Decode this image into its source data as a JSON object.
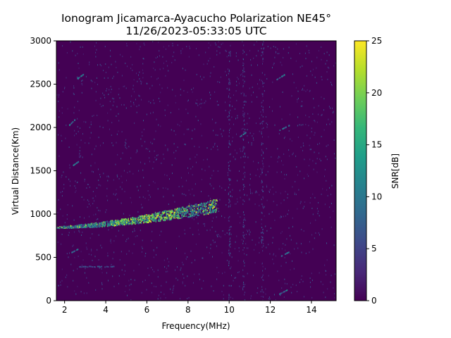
{
  "chart_data": {
    "type": "heatmap",
    "title_line1": "Ionogram Jicamarca-Ayacucho Polarization NE45°",
    "title_line2": "11/26/2023-05:33:05 UTC",
    "xlabel": "Frequency(MHz)",
    "ylabel": "Virtual Distance(Km)",
    "colorbar_label": "SNR[dB]",
    "xlim": [
      1.6,
      15.2
    ],
    "ylim": [
      0,
      3000
    ],
    "x_ticks": [
      2,
      4,
      6,
      8,
      10,
      12,
      14
    ],
    "x_tick_labels": [
      "2",
      "4",
      "6",
      "8",
      "10",
      "12",
      "14"
    ],
    "y_ticks": [
      0,
      500,
      1000,
      1500,
      2000,
      2500,
      3000
    ],
    "y_tick_labels": [
      "0",
      "500",
      "1000",
      "1500",
      "2000",
      "2500",
      "3000"
    ],
    "colorbar_range": [
      0,
      25
    ],
    "colorbar_ticks": [
      0,
      5,
      10,
      15,
      20,
      25
    ],
    "colorbar_tick_labels": [
      "0",
      "5",
      "10",
      "15",
      "20",
      "25"
    ],
    "colormap": "viridis",
    "colormap_stops": [
      "#440154",
      "#482878",
      "#3e4989",
      "#31688e",
      "#26828e",
      "#1f9e89",
      "#35b779",
      "#6ece58",
      "#b5de2b",
      "#fde725"
    ],
    "grid": false,
    "features": [
      {
        "name": "F-layer echo trace",
        "x_range": [
          1.6,
          9.4
        ],
        "distance_range": [
          840,
          1300
        ],
        "snr_peak": 25
      },
      {
        "name": "low echo trace",
        "x_range": [
          2.7,
          4.4
        ],
        "distance_range": [
          395,
          405
        ],
        "snr_peak": 8
      },
      {
        "name": "interference column",
        "x": 10.0,
        "snr_peak": 6
      },
      {
        "name": "interference column",
        "x": 10.7,
        "snr_peak": 6
      },
      {
        "name": "interference column",
        "x": 11.6,
        "snr_peak": 5
      }
    ]
  }
}
